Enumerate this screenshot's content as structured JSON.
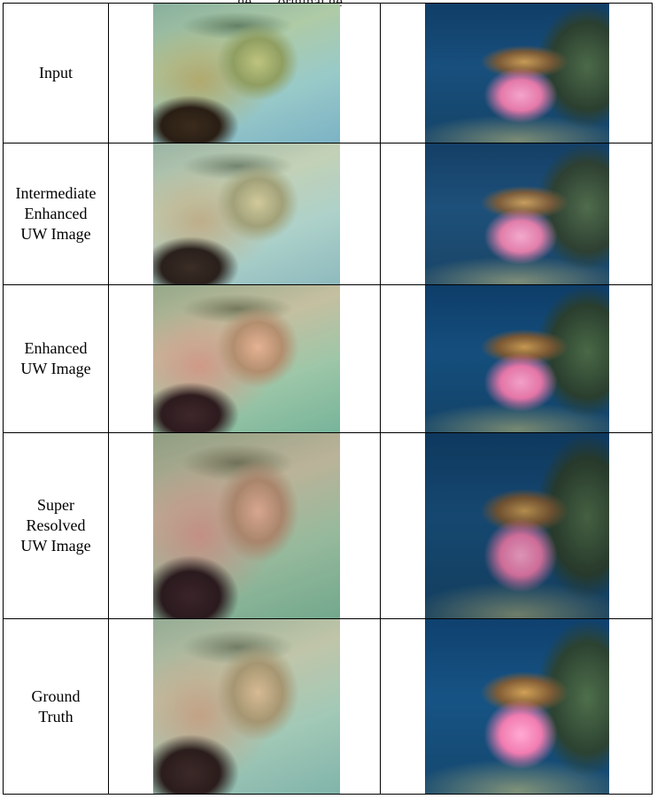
{
  "cut_caption": "ge, … original ge",
  "rows": [
    {
      "label_lines": [
        "Input"
      ]
    },
    {
      "label_lines": [
        "Intermediate",
        "Enhanced",
        "UW Image"
      ]
    },
    {
      "label_lines": [
        "Enhanced",
        "UW Image"
      ]
    },
    {
      "label_lines": [
        "Super",
        "Resolved",
        "UW Image"
      ]
    },
    {
      "label_lines": [
        "Ground",
        "Truth"
      ]
    }
  ]
}
